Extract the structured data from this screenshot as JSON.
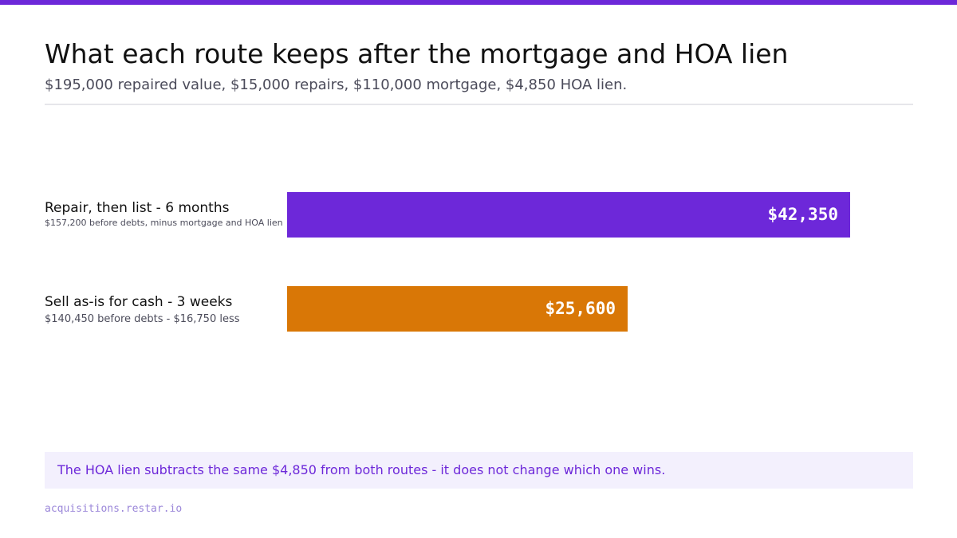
{
  "accent_color": "#6d28d9",
  "chart_data": {
    "type": "bar",
    "orientation": "horizontal",
    "title": "What each route keeps after the mortgage and HOA lien",
    "subtitle": "$195,000 repaired value, $15,000 repairs, $110,000 mortgage, $4,850 HOA lien.",
    "xlabel": "",
    "ylabel": "",
    "categories": [
      "Repair, then list - 6 months",
      "Sell as-is for cash - 3 weeks"
    ],
    "notes": [
      "$157,200 before debts, minus mortgage and HOA lien",
      "$140,450 before debts - $16,750 less"
    ],
    "values": [
      42350,
      25600
    ],
    "value_labels": [
      "$42,350",
      "$25,600"
    ],
    "colors": [
      "#6d28d9",
      "#d97706"
    ],
    "xlim": [
      0,
      47000
    ],
    "grid": false,
    "legend": "none"
  },
  "callout": {
    "text": "The HOA lien subtracts the same $4,850 from both routes - it does not change which one wins."
  },
  "footer": {
    "text": "acquisitions.restar.io"
  }
}
